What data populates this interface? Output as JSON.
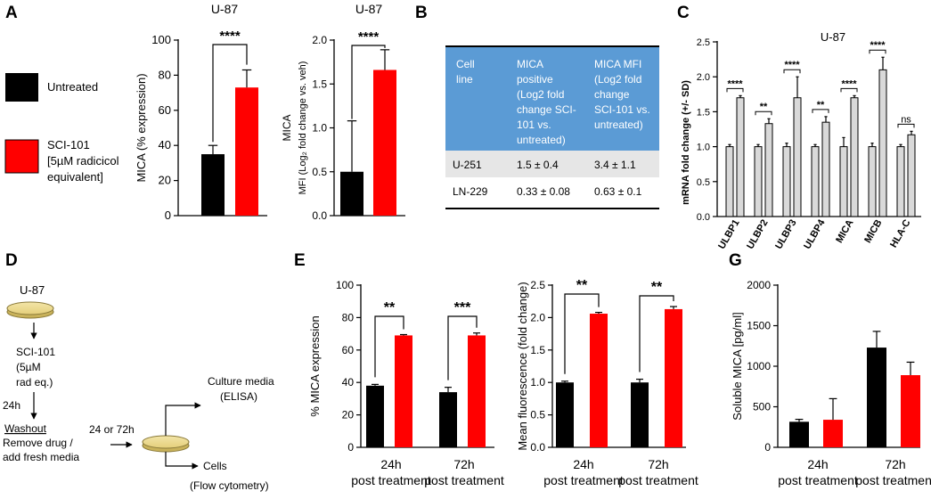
{
  "panel_labels": {
    "A": "A",
    "B": "B",
    "C": "C",
    "D": "D",
    "E": "E",
    "G": "G"
  },
  "colors": {
    "untreated": "#000000",
    "sci101": "#ff0000",
    "table_header": "#5b9bd5",
    "table_row_alt": "#e6e6e6",
    "gray_bar": "#d9d9d9"
  },
  "legend": {
    "untreated": "Untreated",
    "sci_line1": "SCI-101",
    "sci_line2": "[5µM radicicol",
    "sci_line3": "equivalent]"
  },
  "chart_data": [
    {
      "id": "A1",
      "type": "bar",
      "title": "U-87",
      "ylabel": "MICA (% expression)",
      "ylim": [
        0,
        100
      ],
      "yticks": [
        "0",
        "20",
        "40",
        "60",
        "80",
        "100"
      ],
      "series": [
        {
          "name": "Untreated",
          "values": [
            35
          ],
          "errors": [
            5
          ]
        },
        {
          "name": "SCI-101",
          "values": [
            73
          ],
          "errors": [
            10
          ]
        }
      ],
      "significance": "****"
    },
    {
      "id": "A2",
      "type": "bar",
      "title": "U-87",
      "ylabel_line1": "MICA",
      "ylabel_line2": "MFI (Log₂ fold change vs. veh)",
      "ylim": [
        0,
        2.0
      ],
      "yticks": [
        "0.0",
        "0.5",
        "1.0",
        "1.5",
        "2.0"
      ],
      "series": [
        {
          "name": "Untreated",
          "values": [
            0.5
          ],
          "errors": [
            0.58
          ]
        },
        {
          "name": "SCI-101",
          "values": [
            1.66
          ],
          "errors": [
            0.23
          ]
        }
      ],
      "significance": "****"
    },
    {
      "id": "C",
      "type": "bar",
      "title": "U-87",
      "ylabel": "mRNA fold change (+/- SD)",
      "ylim": [
        0,
        2.5
      ],
      "yticks": [
        "0.0",
        "0.5",
        "1.0",
        "1.5",
        "2.0",
        "2.5"
      ],
      "categories": [
        "ULBP1",
        "ULBP2",
        "ULBP3",
        "ULBP4",
        "MICA",
        "MICB",
        "HLA-C"
      ],
      "series": [
        {
          "name": "Untreated",
          "values": [
            1.0,
            1.0,
            1.0,
            1.0,
            1.0,
            1.0,
            1.0
          ],
          "errors": [
            0.03,
            0.03,
            0.05,
            0.03,
            0.13,
            0.05,
            0.03
          ]
        },
        {
          "name": "SCI-101",
          "values": [
            1.7,
            1.33,
            1.7,
            1.35,
            1.7,
            2.1,
            1.17
          ],
          "errors": [
            0.03,
            0.07,
            0.3,
            0.08,
            0.03,
            0.18,
            0.05
          ]
        }
      ],
      "significance": [
        "****",
        "**",
        "****",
        "**",
        "****",
        "****",
        "ns"
      ]
    },
    {
      "id": "E1",
      "type": "bar",
      "ylabel": "% MICA expression",
      "ylim": [
        0,
        100
      ],
      "yticks": [
        "0",
        "20",
        "40",
        "60",
        "80",
        "100"
      ],
      "categories": [
        "24h",
        "72h"
      ],
      "category_sub": "post treatment",
      "series": [
        {
          "name": "Untreated",
          "values": [
            38,
            34
          ],
          "errors": [
            0.8,
            3
          ]
        },
        {
          "name": "SCI-101",
          "values": [
            69,
            69
          ],
          "errors": [
            0.5,
            1.5
          ]
        }
      ],
      "significance": [
        "**",
        "***"
      ]
    },
    {
      "id": "E2",
      "type": "bar",
      "ylabel": "Mean fluorescence (fold change)",
      "ylim": [
        0,
        2.5
      ],
      "yticks": [
        "0.0",
        "0.5",
        "1.0",
        "1.5",
        "2.0",
        "2.5"
      ],
      "categories": [
        "24h",
        "72h"
      ],
      "category_sub": "post treatment",
      "series": [
        {
          "name": "Untreated",
          "values": [
            1.0,
            1.0
          ],
          "errors": [
            0.02,
            0.05
          ]
        },
        {
          "name": "SCI-101",
          "values": [
            2.06,
            2.13
          ],
          "errors": [
            0.02,
            0.04
          ]
        }
      ],
      "significance": [
        "**",
        "**"
      ]
    },
    {
      "id": "G",
      "type": "bar",
      "ylabel": "Soluble MICA  [pg/ml]",
      "ylim": [
        0,
        2000
      ],
      "yticks": [
        "0",
        "500",
        "1000",
        "1500",
        "2000"
      ],
      "categories": [
        "24h",
        "72h"
      ],
      "category_sub": "post treatment",
      "series": [
        {
          "name": "Untreated",
          "values": [
            315,
            1230
          ],
          "errors": [
            30,
            200
          ]
        },
        {
          "name": "SCI-101",
          "values": [
            340,
            890
          ],
          "errors": [
            260,
            160
          ]
        }
      ]
    }
  ],
  "table": {
    "headers": [
      [
        "Cell",
        "line"
      ],
      [
        "MICA",
        "positive",
        "(Log2 fold",
        "change SCI-",
        "101 vs.",
        "untreated)"
      ],
      [
        "MICA MFI",
        "(Log2 fold",
        "change",
        "SCI-101 vs.",
        "untreated)"
      ]
    ],
    "rows": [
      [
        "U-251",
        "1.5 ± 0.4",
        "3.4 ± 1.1"
      ],
      [
        "LN-229",
        "0.33 ± 0.08",
        "0.63 ± 0.1"
      ]
    ]
  },
  "diagram": {
    "cell_line": "U-87",
    "treat": [
      "SCI-101",
      "(5µM",
      "rad eq.)"
    ],
    "time1": "24h",
    "washout": "Washout",
    "washout_desc": [
      "Remove drug /",
      "add fresh media"
    ],
    "time2": "24 or 72h",
    "out1": [
      "Culture media",
      "(ELISA)"
    ],
    "out2": [
      "Cells",
      "(Flow cytometry)"
    ]
  }
}
